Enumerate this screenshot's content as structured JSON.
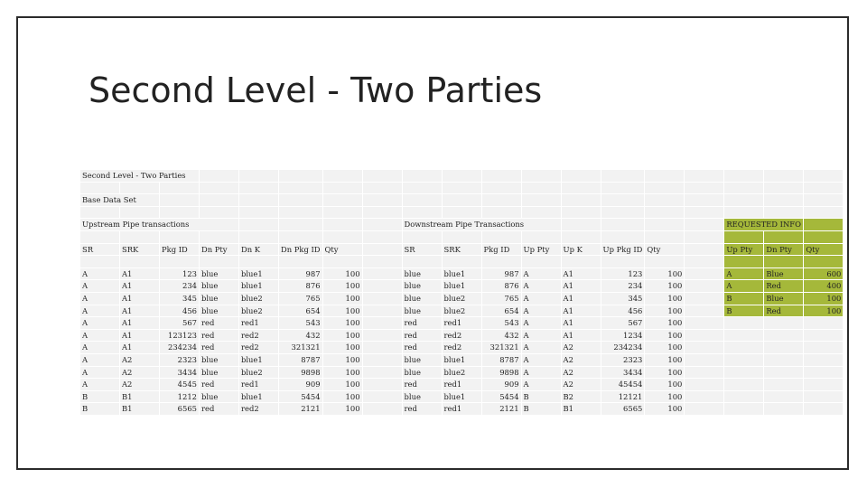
{
  "slide": {
    "title": "Second Level  - Two Parties"
  },
  "sheet": {
    "caption": "Second Level - Two Parties",
    "base_label": "Base Data Set",
    "upstream_label": "Upstream Pipe transactions",
    "downstream_label": "Downstream Pipe Transactions",
    "requested_label": "REQUESTED INFO",
    "headers": {
      "up": [
        "SR",
        "SRK",
        "Pkg ID",
        "Dn Pty",
        "Dn K",
        "Dn Pkg ID",
        "Qty"
      ],
      "down": [
        "SR",
        "SRK",
        "Pkg ID",
        "Up Pty",
        "Up K",
        "Up Pkg ID",
        "Qty"
      ],
      "req": [
        "Up Pty",
        "Dn Pty",
        "Qty"
      ]
    },
    "rows": [
      {
        "up": [
          "A",
          "A1",
          "123",
          "blue",
          "blue1",
          "987",
          "100"
        ],
        "down": [
          "blue",
          "blue1",
          "987",
          "A",
          "A1",
          "123",
          "100"
        ],
        "req": [
          "A",
          "Blue",
          "600"
        ]
      },
      {
        "up": [
          "A",
          "A1",
          "234",
          "blue",
          "blue1",
          "876",
          "100"
        ],
        "down": [
          "blue",
          "blue1",
          "876",
          "A",
          "A1",
          "234",
          "100"
        ],
        "req": [
          "A",
          "Red",
          "400"
        ]
      },
      {
        "up": [
          "A",
          "A1",
          "345",
          "blue",
          "blue2",
          "765",
          "100"
        ],
        "down": [
          "blue",
          "blue2",
          "765",
          "A",
          "A1",
          "345",
          "100"
        ],
        "req": [
          "B",
          "Blue",
          "100"
        ]
      },
      {
        "up": [
          "A",
          "A1",
          "456",
          "blue",
          "blue2",
          "654",
          "100"
        ],
        "down": [
          "blue",
          "blue2",
          "654",
          "A",
          "A1",
          "456",
          "100"
        ],
        "req": [
          "B",
          "Red",
          "100"
        ]
      },
      {
        "up": [
          "A",
          "A1",
          "567",
          "red",
          "red1",
          "543",
          "100"
        ],
        "down": [
          "red",
          "red1",
          "543",
          "A",
          "A1",
          "567",
          "100"
        ],
        "req": []
      },
      {
        "up": [
          "A",
          "A1",
          "123123",
          "red",
          "red2",
          "432",
          "100"
        ],
        "down": [
          "red",
          "red2",
          "432",
          "A",
          "A1",
          "1234",
          "100"
        ],
        "req": []
      },
      {
        "up": [
          "A",
          "A1",
          "234234",
          "red",
          "red2",
          "321321",
          "100"
        ],
        "down": [
          "red",
          "red2",
          "321321",
          "A",
          "A2",
          "234234",
          "100"
        ],
        "req": []
      },
      {
        "up": [
          "A",
          "A2",
          "2323",
          "blue",
          "blue1",
          "8787",
          "100"
        ],
        "down": [
          "blue",
          "blue1",
          "8787",
          "A",
          "A2",
          "2323",
          "100"
        ],
        "req": []
      },
      {
        "up": [
          "A",
          "A2",
          "3434",
          "blue",
          "blue2",
          "9898",
          "100"
        ],
        "down": [
          "blue",
          "blue2",
          "9898",
          "A",
          "A2",
          "3434",
          "100"
        ],
        "req": []
      },
      {
        "up": [
          "A",
          "A2",
          "4545",
          "red",
          "red1",
          "909",
          "100"
        ],
        "down": [
          "red",
          "red1",
          "909",
          "A",
          "A2",
          "45454",
          "100"
        ],
        "req": []
      },
      {
        "up": [
          "B",
          "B1",
          "1212",
          "blue",
          "blue1",
          "5454",
          "100"
        ],
        "down": [
          "blue",
          "blue1",
          "5454",
          "B",
          "B2",
          "12121",
          "100"
        ],
        "req": []
      },
      {
        "up": [
          "B",
          "B1",
          "6565",
          "red",
          "red2",
          "2121",
          "100"
        ],
        "down": [
          "red",
          "red1",
          "2121",
          "B",
          "B1",
          "6565",
          "100"
        ],
        "req": []
      }
    ]
  },
  "colors": {
    "cell_bg": "#f2f2f2",
    "requested_bg": "#a5b83a",
    "border": "#2b2b2b"
  }
}
